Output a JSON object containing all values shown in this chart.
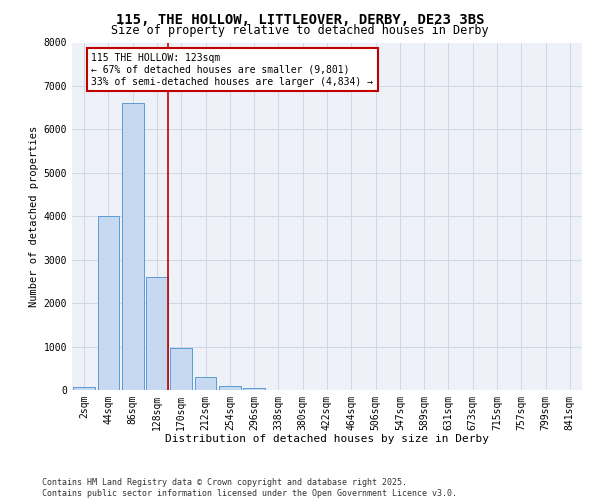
{
  "title_line1": "115, THE HOLLOW, LITTLEOVER, DERBY, DE23 3BS",
  "title_line2": "Size of property relative to detached houses in Derby",
  "xlabel": "Distribution of detached houses by size in Derby",
  "ylabel": "Number of detached properties",
  "footer_line1": "Contains HM Land Registry data © Crown copyright and database right 2025.",
  "footer_line2": "Contains public sector information licensed under the Open Government Licence v3.0.",
  "annotation_line1": "115 THE HOLLOW: 123sqm",
  "annotation_line2": "← 67% of detached houses are smaller (9,801)",
  "annotation_line3": "33% of semi-detached houses are larger (4,834) →",
  "bar_labels": [
    "2sqm",
    "44sqm",
    "86sqm",
    "128sqm",
    "170sqm",
    "212sqm",
    "254sqm",
    "296sqm",
    "338sqm",
    "380sqm",
    "422sqm",
    "464sqm",
    "506sqm",
    "547sqm",
    "589sqm",
    "631sqm",
    "673sqm",
    "715sqm",
    "757sqm",
    "799sqm",
    "841sqm"
  ],
  "bar_values": [
    70,
    4000,
    6600,
    2600,
    970,
    310,
    100,
    50,
    10,
    5,
    2,
    1,
    0,
    0,
    0,
    0,
    0,
    0,
    0,
    0,
    0
  ],
  "bar_color": "#c6d9f1",
  "bar_edge_color": "#5b9bd5",
  "vline_x_idx": 3,
  "vline_color": "#c00000",
  "ylim": [
    0,
    8000
  ],
  "yticks": [
    0,
    1000,
    2000,
    3000,
    4000,
    5000,
    6000,
    7000,
    8000
  ],
  "grid_color": "#d0d8e8",
  "bg_color": "#eef2f8",
  "annotation_box_color": "#c00000",
  "annotation_box_fill": "white",
  "title_fontsize": 10,
  "subtitle_fontsize": 8.5,
  "xlabel_fontsize": 8,
  "ylabel_fontsize": 7.5,
  "tick_fontsize": 7,
  "annotation_fontsize": 7,
  "footer_fontsize": 6
}
